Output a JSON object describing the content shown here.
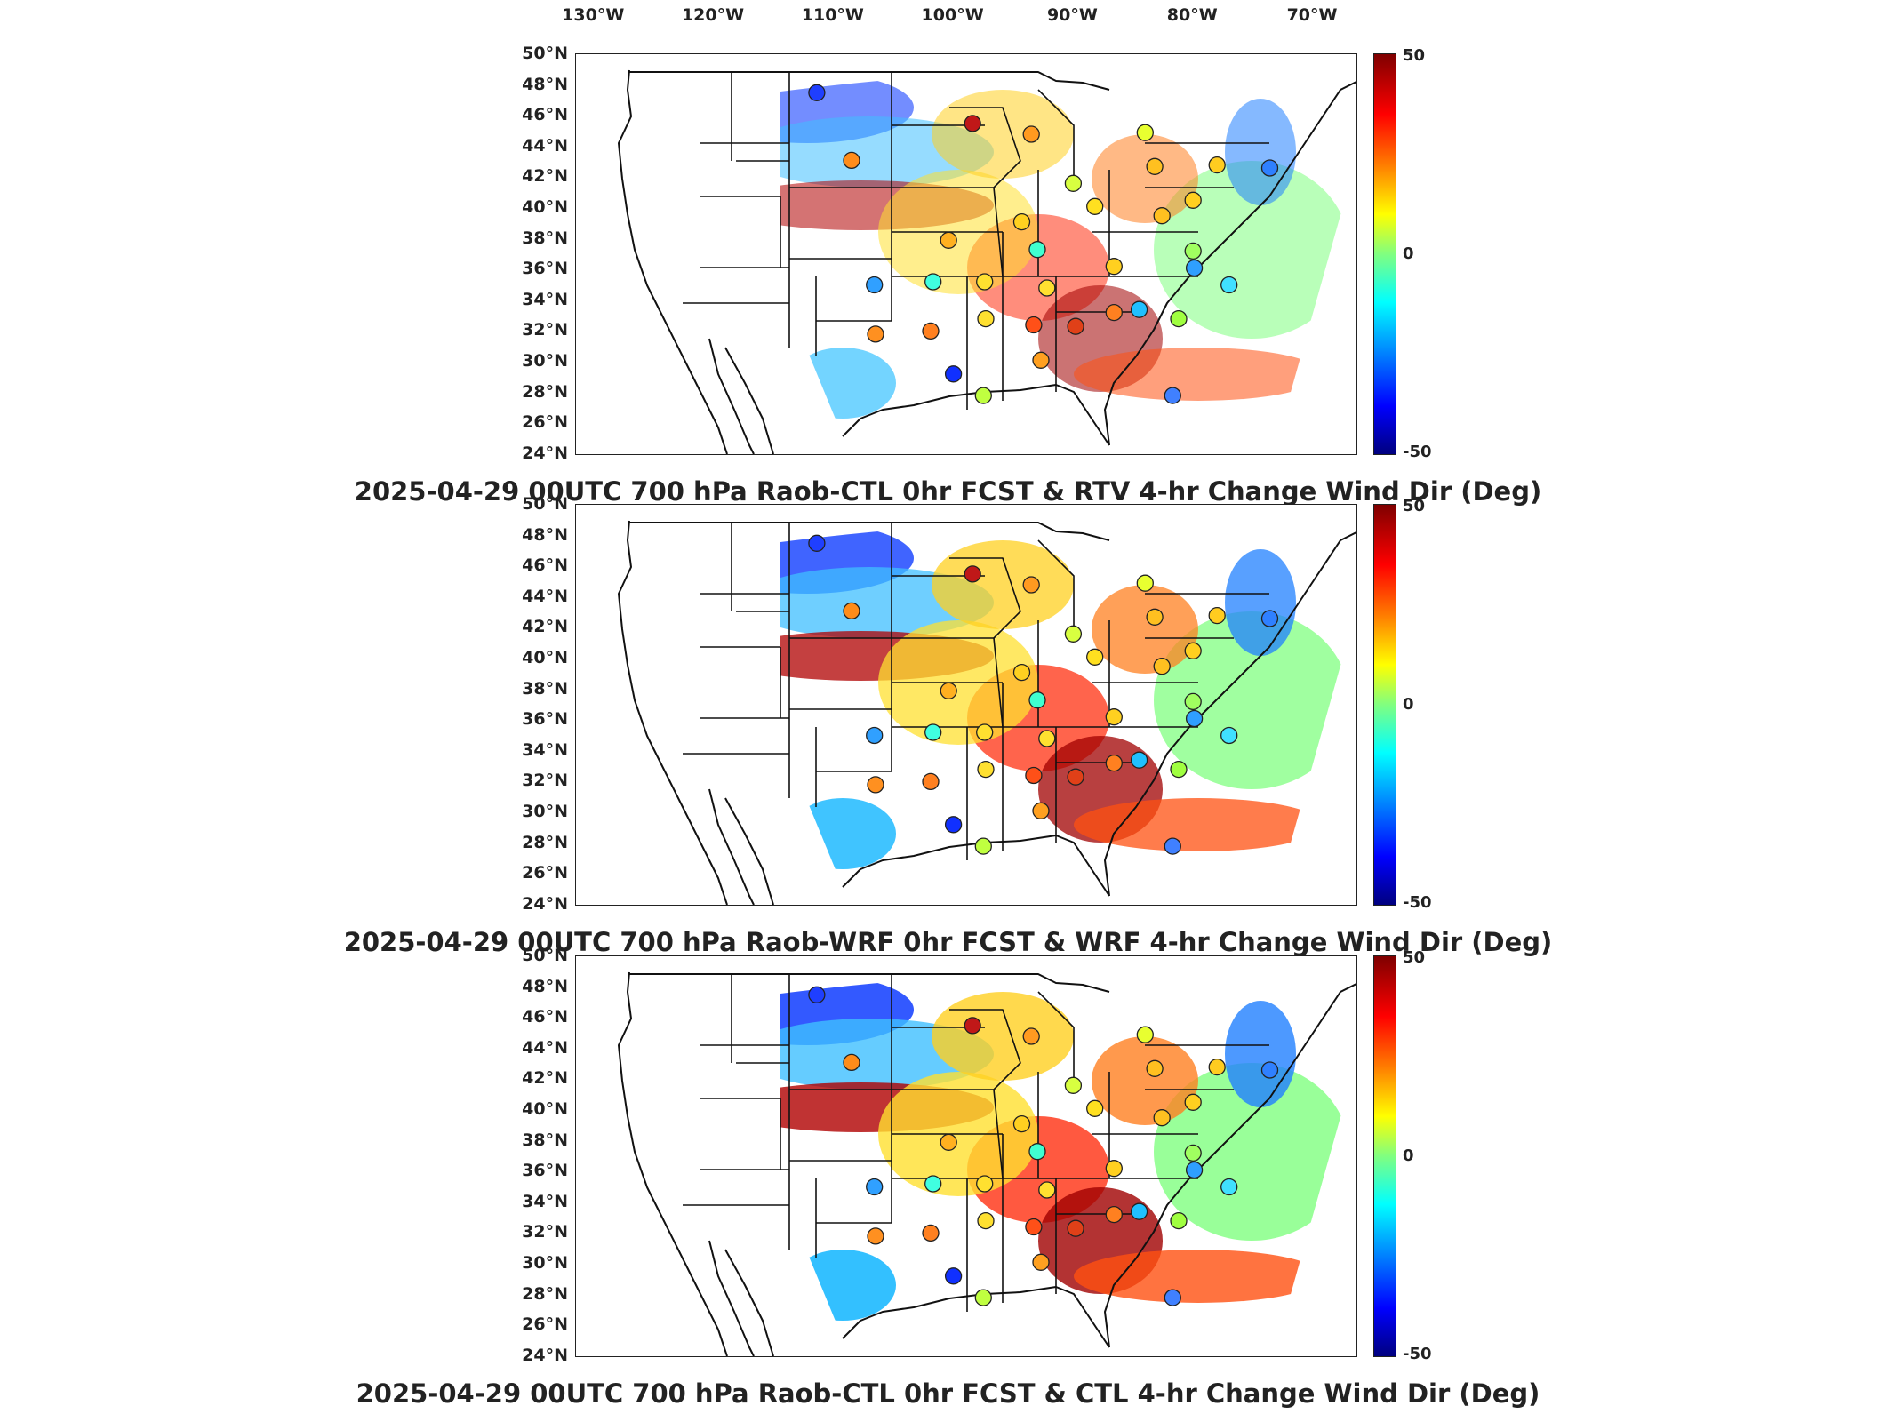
{
  "longitude_axis": {
    "ticks": [
      {
        "value": -130,
        "label": "130°W"
      },
      {
        "value": -120,
        "label": "120°W"
      },
      {
        "value": -110,
        "label": "110°W"
      },
      {
        "value": -100,
        "label": "100°W"
      },
      {
        "value": -90,
        "label": "90°W"
      },
      {
        "value": -80,
        "label": "80°W"
      },
      {
        "value": -70,
        "label": "70°W"
      }
    ]
  },
  "latitude_axis": {
    "ticks": [
      {
        "value": 50,
        "label": "50°N"
      },
      {
        "value": 48,
        "label": "48°N"
      },
      {
        "value": 46,
        "label": "46°N"
      },
      {
        "value": 44,
        "label": "44°N"
      },
      {
        "value": 42,
        "label": "42°N"
      },
      {
        "value": 40,
        "label": "40°N"
      },
      {
        "value": 38,
        "label": "38°N"
      },
      {
        "value": 36,
        "label": "36°N"
      },
      {
        "value": 34,
        "label": "34°N"
      },
      {
        "value": 32,
        "label": "32°N"
      },
      {
        "value": 30,
        "label": "30°N"
      },
      {
        "value": 28,
        "label": "28°N"
      },
      {
        "value": 26,
        "label": "26°N"
      },
      {
        "value": 24,
        "label": "24°N"
      }
    ]
  },
  "colorbar": {
    "max_label": "50",
    "mid_label": "0",
    "min_label": "-50",
    "range": [
      -50,
      50
    ],
    "colormap": "jet"
  },
  "panels": [
    {
      "id": "panel-1",
      "title": "2025-04-29 00UTC 700 hPa Raob-CTL 0hr FCST & RTV 4-hr Change Wind Dir (Deg)"
    },
    {
      "id": "panel-2",
      "title": "2025-04-29 00UTC 700 hPa Raob-WRF 0hr FCST & WRF 4-hr Change Wind Dir (Deg)"
    },
    {
      "id": "panel-3",
      "title": "2025-04-29 00UTC 700 hPa Raob-CTL 0hr FCST & CTL 4-hr Change Wind Dir (Deg)"
    }
  ],
  "raob_stations": [
    {
      "lon": -111.4,
      "lat": 47.5,
      "color": "#1f3fff"
    },
    {
      "lon": -108.5,
      "lat": 43.1,
      "color": "#ff8c1a"
    },
    {
      "lon": -98.4,
      "lat": 45.5,
      "color": "#c01818"
    },
    {
      "lon": -93.5,
      "lat": 44.8,
      "color": "#ff9a20"
    },
    {
      "lon": -90.0,
      "lat": 41.6,
      "color": "#d8ff40"
    },
    {
      "lon": -84.0,
      "lat": 44.9,
      "color": "#e8ff30"
    },
    {
      "lon": -83.2,
      "lat": 42.7,
      "color": "#ffc020"
    },
    {
      "lon": -73.6,
      "lat": 42.6,
      "color": "#2f80ff"
    },
    {
      "lon": -78.0,
      "lat": 42.8,
      "color": "#ffcc20"
    },
    {
      "lon": -94.3,
      "lat": 39.1,
      "color": "#ffd020"
    },
    {
      "lon": -88.2,
      "lat": 40.1,
      "color": "#ffe020"
    },
    {
      "lon": -82.6,
      "lat": 39.5,
      "color": "#ffc020"
    },
    {
      "lon": -80.0,
      "lat": 40.5,
      "color": "#ffd020"
    },
    {
      "lon": -100.4,
      "lat": 37.9,
      "color": "#ffb020"
    },
    {
      "lon": -93.0,
      "lat": 37.3,
      "color": "#40ffd0"
    },
    {
      "lon": -86.6,
      "lat": 36.2,
      "color": "#ffd020"
    },
    {
      "lon": -80.0,
      "lat": 37.2,
      "color": "#a0ff60"
    },
    {
      "lon": -79.9,
      "lat": 36.1,
      "color": "#2f9fff"
    },
    {
      "lon": -77.0,
      "lat": 35.0,
      "color": "#40e0ff"
    },
    {
      "lon": -106.6,
      "lat": 35.0,
      "color": "#30a0ff"
    },
    {
      "lon": -101.7,
      "lat": 35.2,
      "color": "#40ffe0"
    },
    {
      "lon": -97.4,
      "lat": 35.2,
      "color": "#ffe030"
    },
    {
      "lon": -92.2,
      "lat": 34.8,
      "color": "#ffe030"
    },
    {
      "lon": -84.5,
      "lat": 33.4,
      "color": "#20c0ff"
    },
    {
      "lon": -86.6,
      "lat": 33.2,
      "color": "#ff8020"
    },
    {
      "lon": -81.2,
      "lat": 32.8,
      "color": "#a0ff40"
    },
    {
      "lon": -106.5,
      "lat": 31.8,
      "color": "#ff9020"
    },
    {
      "lon": -101.9,
      "lat": 32.0,
      "color": "#ff8020"
    },
    {
      "lon": -97.3,
      "lat": 32.8,
      "color": "#ffe030"
    },
    {
      "lon": -93.3,
      "lat": 32.4,
      "color": "#ff5018"
    },
    {
      "lon": -89.8,
      "lat": 32.3,
      "color": "#e04018"
    },
    {
      "lon": -92.7,
      "lat": 30.1,
      "color": "#ffa020"
    },
    {
      "lon": -100.0,
      "lat": 29.2,
      "color": "#1030ff"
    },
    {
      "lon": -97.5,
      "lat": 27.8,
      "color": "#c0ff40"
    },
    {
      "lon": -81.7,
      "lat": 27.8,
      "color": "#4080ff"
    }
  ]
}
